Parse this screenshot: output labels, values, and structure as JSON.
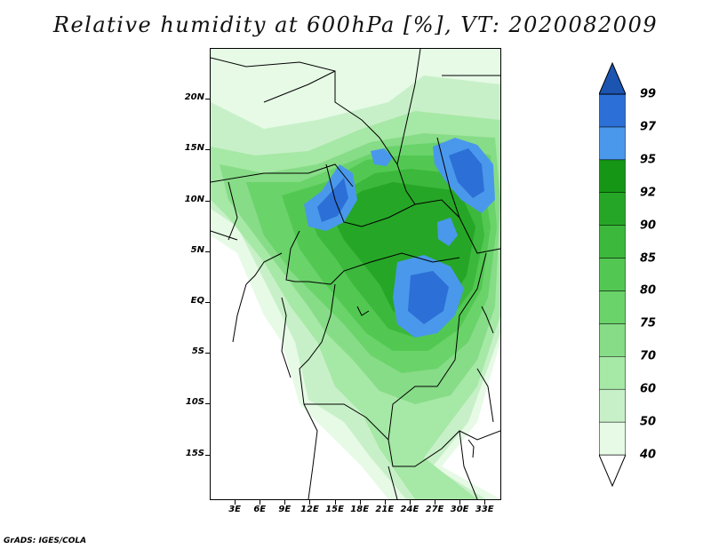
{
  "title": "Relative humidity at 600hPa [%], VT: 2020082009",
  "credit": "GrADS: IGES/COLA",
  "map": {
    "lat_labels": [
      "20N",
      "15N",
      "10N",
      "5N",
      "EQ",
      "5S",
      "10S",
      "15S"
    ],
    "lon_labels": [
      "3E",
      "6E",
      "9E",
      "12E",
      "15E",
      "18E",
      "21E",
      "24E",
      "27E",
      "30E",
      "33E"
    ],
    "lat_values": [
      20,
      15,
      10,
      5,
      0,
      -5,
      -10,
      -15
    ],
    "lon_values": [
      3,
      6,
      9,
      12,
      15,
      18,
      21,
      24,
      27,
      30,
      33
    ],
    "lon_range": [
      0,
      35
    ],
    "lat_range": [
      -19.5,
      25
    ]
  },
  "colorbar": {
    "levels": [
      "40",
      "50",
      "60",
      "70",
      "75",
      "80",
      "85",
      "90",
      "92",
      "95",
      "97",
      "99"
    ],
    "colors": [
      "#ffffff",
      "#e6fae6",
      "#c8f0c8",
      "#a6e8a6",
      "#87dc87",
      "#6ad36a",
      "#52c852",
      "#3cb83c",
      "#26a626",
      "#159615",
      "#4a98ec",
      "#2c6fd6",
      "#1c54b2"
    ]
  }
}
